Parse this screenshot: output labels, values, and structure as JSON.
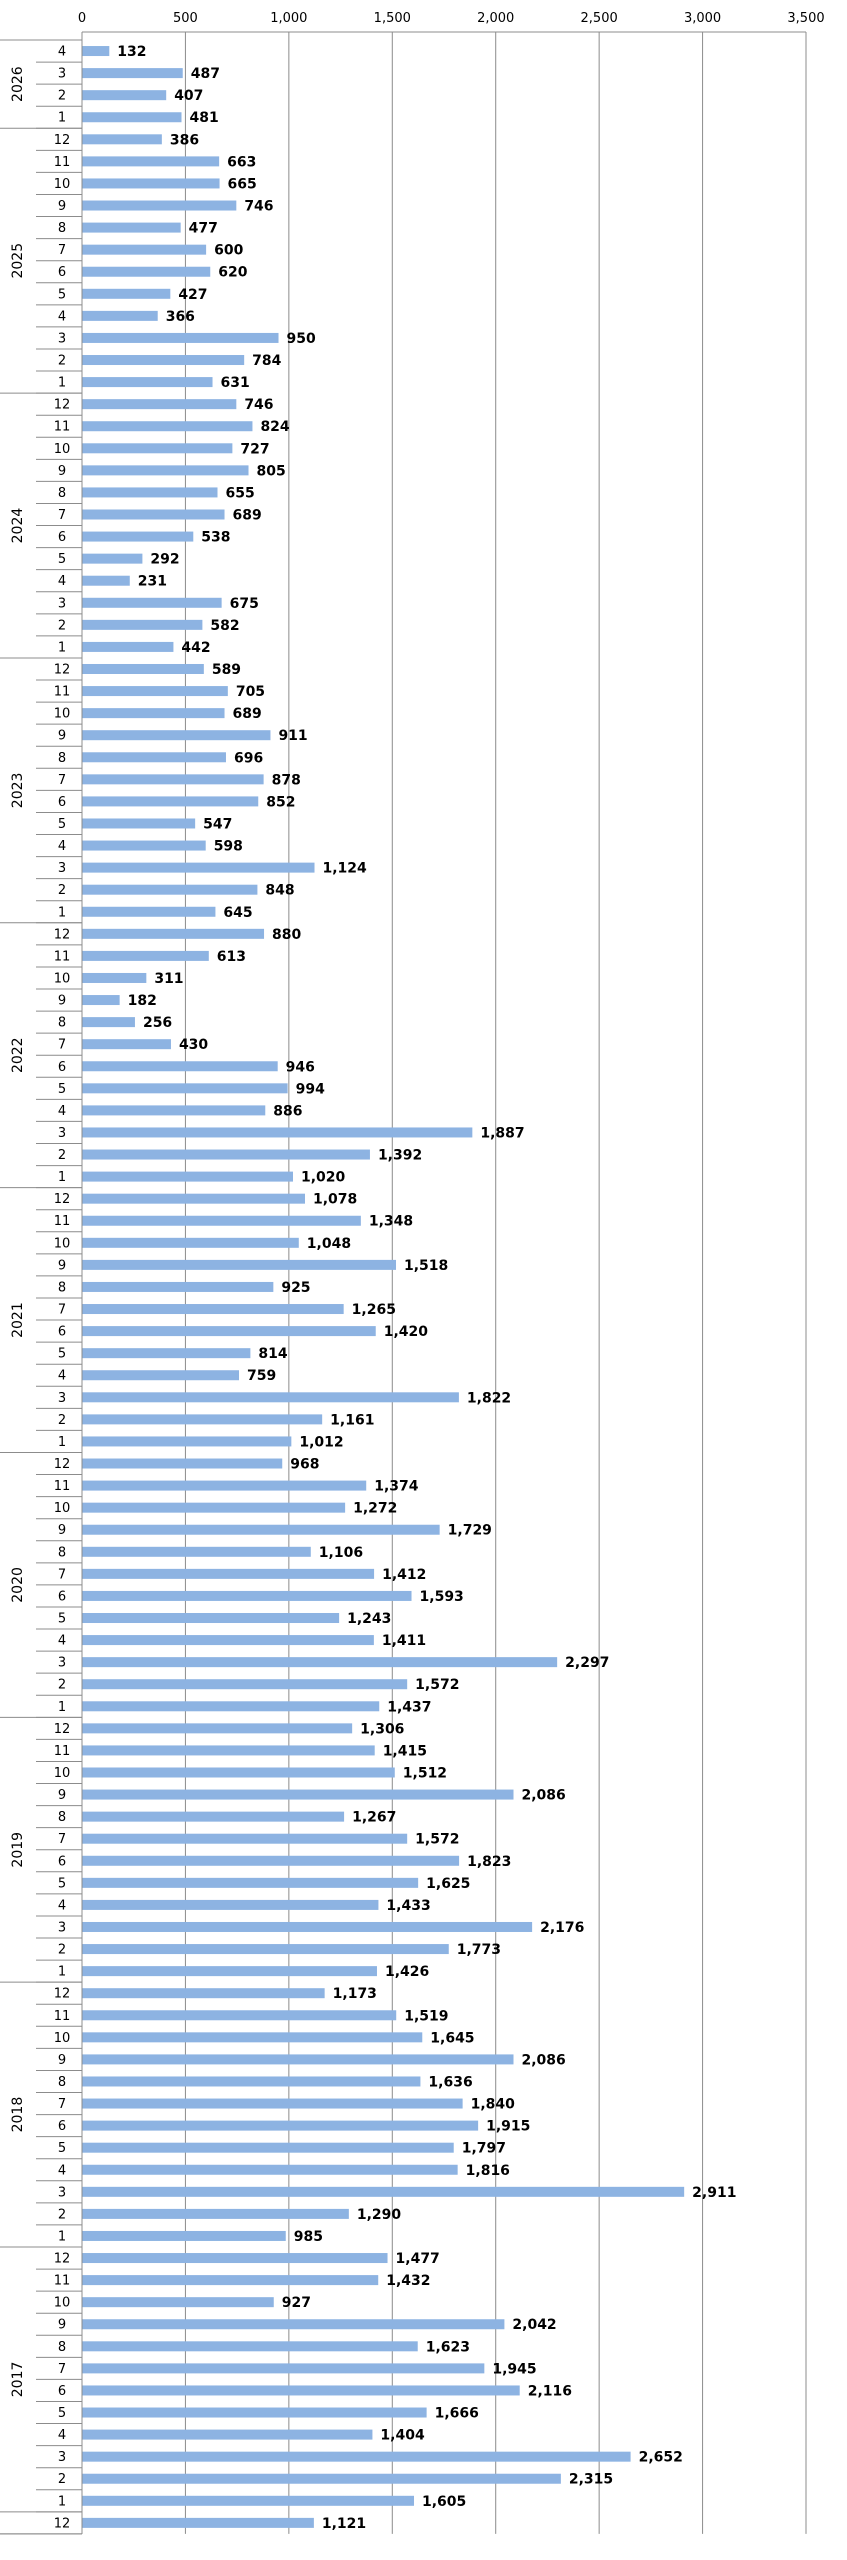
{
  "chart_data": {
    "type": "bar",
    "orientation": "horizontal",
    "xlim": [
      0,
      3500
    ],
    "x_ticks": [
      "0",
      "500",
      "1,000",
      "1,500",
      "2,000",
      "2,500",
      "3,000",
      "3,500"
    ],
    "x_tick_values": [
      0,
      500,
      1000,
      1500,
      2000,
      2500,
      3000,
      3500
    ],
    "grid": true,
    "bar_color": "#8DB3E2",
    "groups": [
      {
        "year": "2026",
        "months": [
          "4",
          "3",
          "2",
          "1"
        ],
        "values": [
          132,
          487,
          407,
          481
        ]
      },
      {
        "year": "2025",
        "months": [
          "12",
          "11",
          "10",
          "9",
          "8",
          "7",
          "6",
          "5",
          "4",
          "3",
          "2",
          "1"
        ],
        "values": [
          386,
          663,
          665,
          746,
          477,
          600,
          620,
          427,
          366,
          950,
          784,
          631
        ]
      },
      {
        "year": "2024",
        "months": [
          "12",
          "11",
          "10",
          "9",
          "8",
          "7",
          "6",
          "5",
          "4",
          "3",
          "2",
          "1"
        ],
        "values": [
          746,
          824,
          727,
          805,
          655,
          689,
          538,
          292,
          231,
          675,
          582,
          442
        ]
      },
      {
        "year": "2023",
        "months": [
          "12",
          "11",
          "10",
          "9",
          "8",
          "7",
          "6",
          "5",
          "4",
          "3",
          "2",
          "1"
        ],
        "values": [
          589,
          705,
          689,
          911,
          696,
          878,
          852,
          547,
          598,
          1124,
          848,
          645
        ]
      },
      {
        "year": "2022",
        "months": [
          "12",
          "11",
          "10",
          "9",
          "8",
          "7",
          "6",
          "5",
          "4",
          "3",
          "2",
          "1"
        ],
        "values": [
          880,
          613,
          311,
          182,
          256,
          430,
          946,
          994,
          886,
          1887,
          1392,
          1020
        ]
      },
      {
        "year": "2021",
        "months": [
          "12",
          "11",
          "10",
          "9",
          "8",
          "7",
          "6",
          "5",
          "4",
          "3",
          "2",
          "1"
        ],
        "values": [
          1078,
          1348,
          1048,
          1518,
          925,
          1265,
          1420,
          814,
          759,
          1822,
          1161,
          1012
        ]
      },
      {
        "year": "2020",
        "months": [
          "12",
          "11",
          "10",
          "9",
          "8",
          "7",
          "6",
          "5",
          "4",
          "3",
          "2",
          "1"
        ],
        "values": [
          968,
          1374,
          1272,
          1729,
          1106,
          1412,
          1593,
          1243,
          1411,
          2297,
          1572,
          1437
        ]
      },
      {
        "year": "2019",
        "months": [
          "12",
          "11",
          "10",
          "9",
          "8",
          "7",
          "6",
          "5",
          "4",
          "3",
          "2",
          "1"
        ],
        "values": [
          1306,
          1415,
          1512,
          2086,
          1267,
          1572,
          1823,
          1625,
          1433,
          2176,
          1773,
          1426
        ]
      },
      {
        "year": "2018",
        "months": [
          "12",
          "11",
          "10",
          "9",
          "8",
          "7",
          "6",
          "5",
          "4",
          "3",
          "2",
          "1"
        ],
        "values": [
          1173,
          1519,
          1645,
          2086,
          1636,
          1840,
          1915,
          1797,
          1816,
          2911,
          1290,
          985
        ]
      },
      {
        "year": "2017",
        "months": [
          "12",
          "11",
          "10",
          "9",
          "8",
          "7",
          "6",
          "5",
          "4",
          "3",
          "2",
          "1"
        ],
        "values": [
          1477,
          1432,
          927,
          2042,
          1623,
          1945,
          2116,
          1666,
          1404,
          2652,
          2315,
          1605
        ]
      },
      {
        "year": "",
        "months": [
          "12"
        ],
        "values": [
          1121
        ]
      }
    ]
  }
}
